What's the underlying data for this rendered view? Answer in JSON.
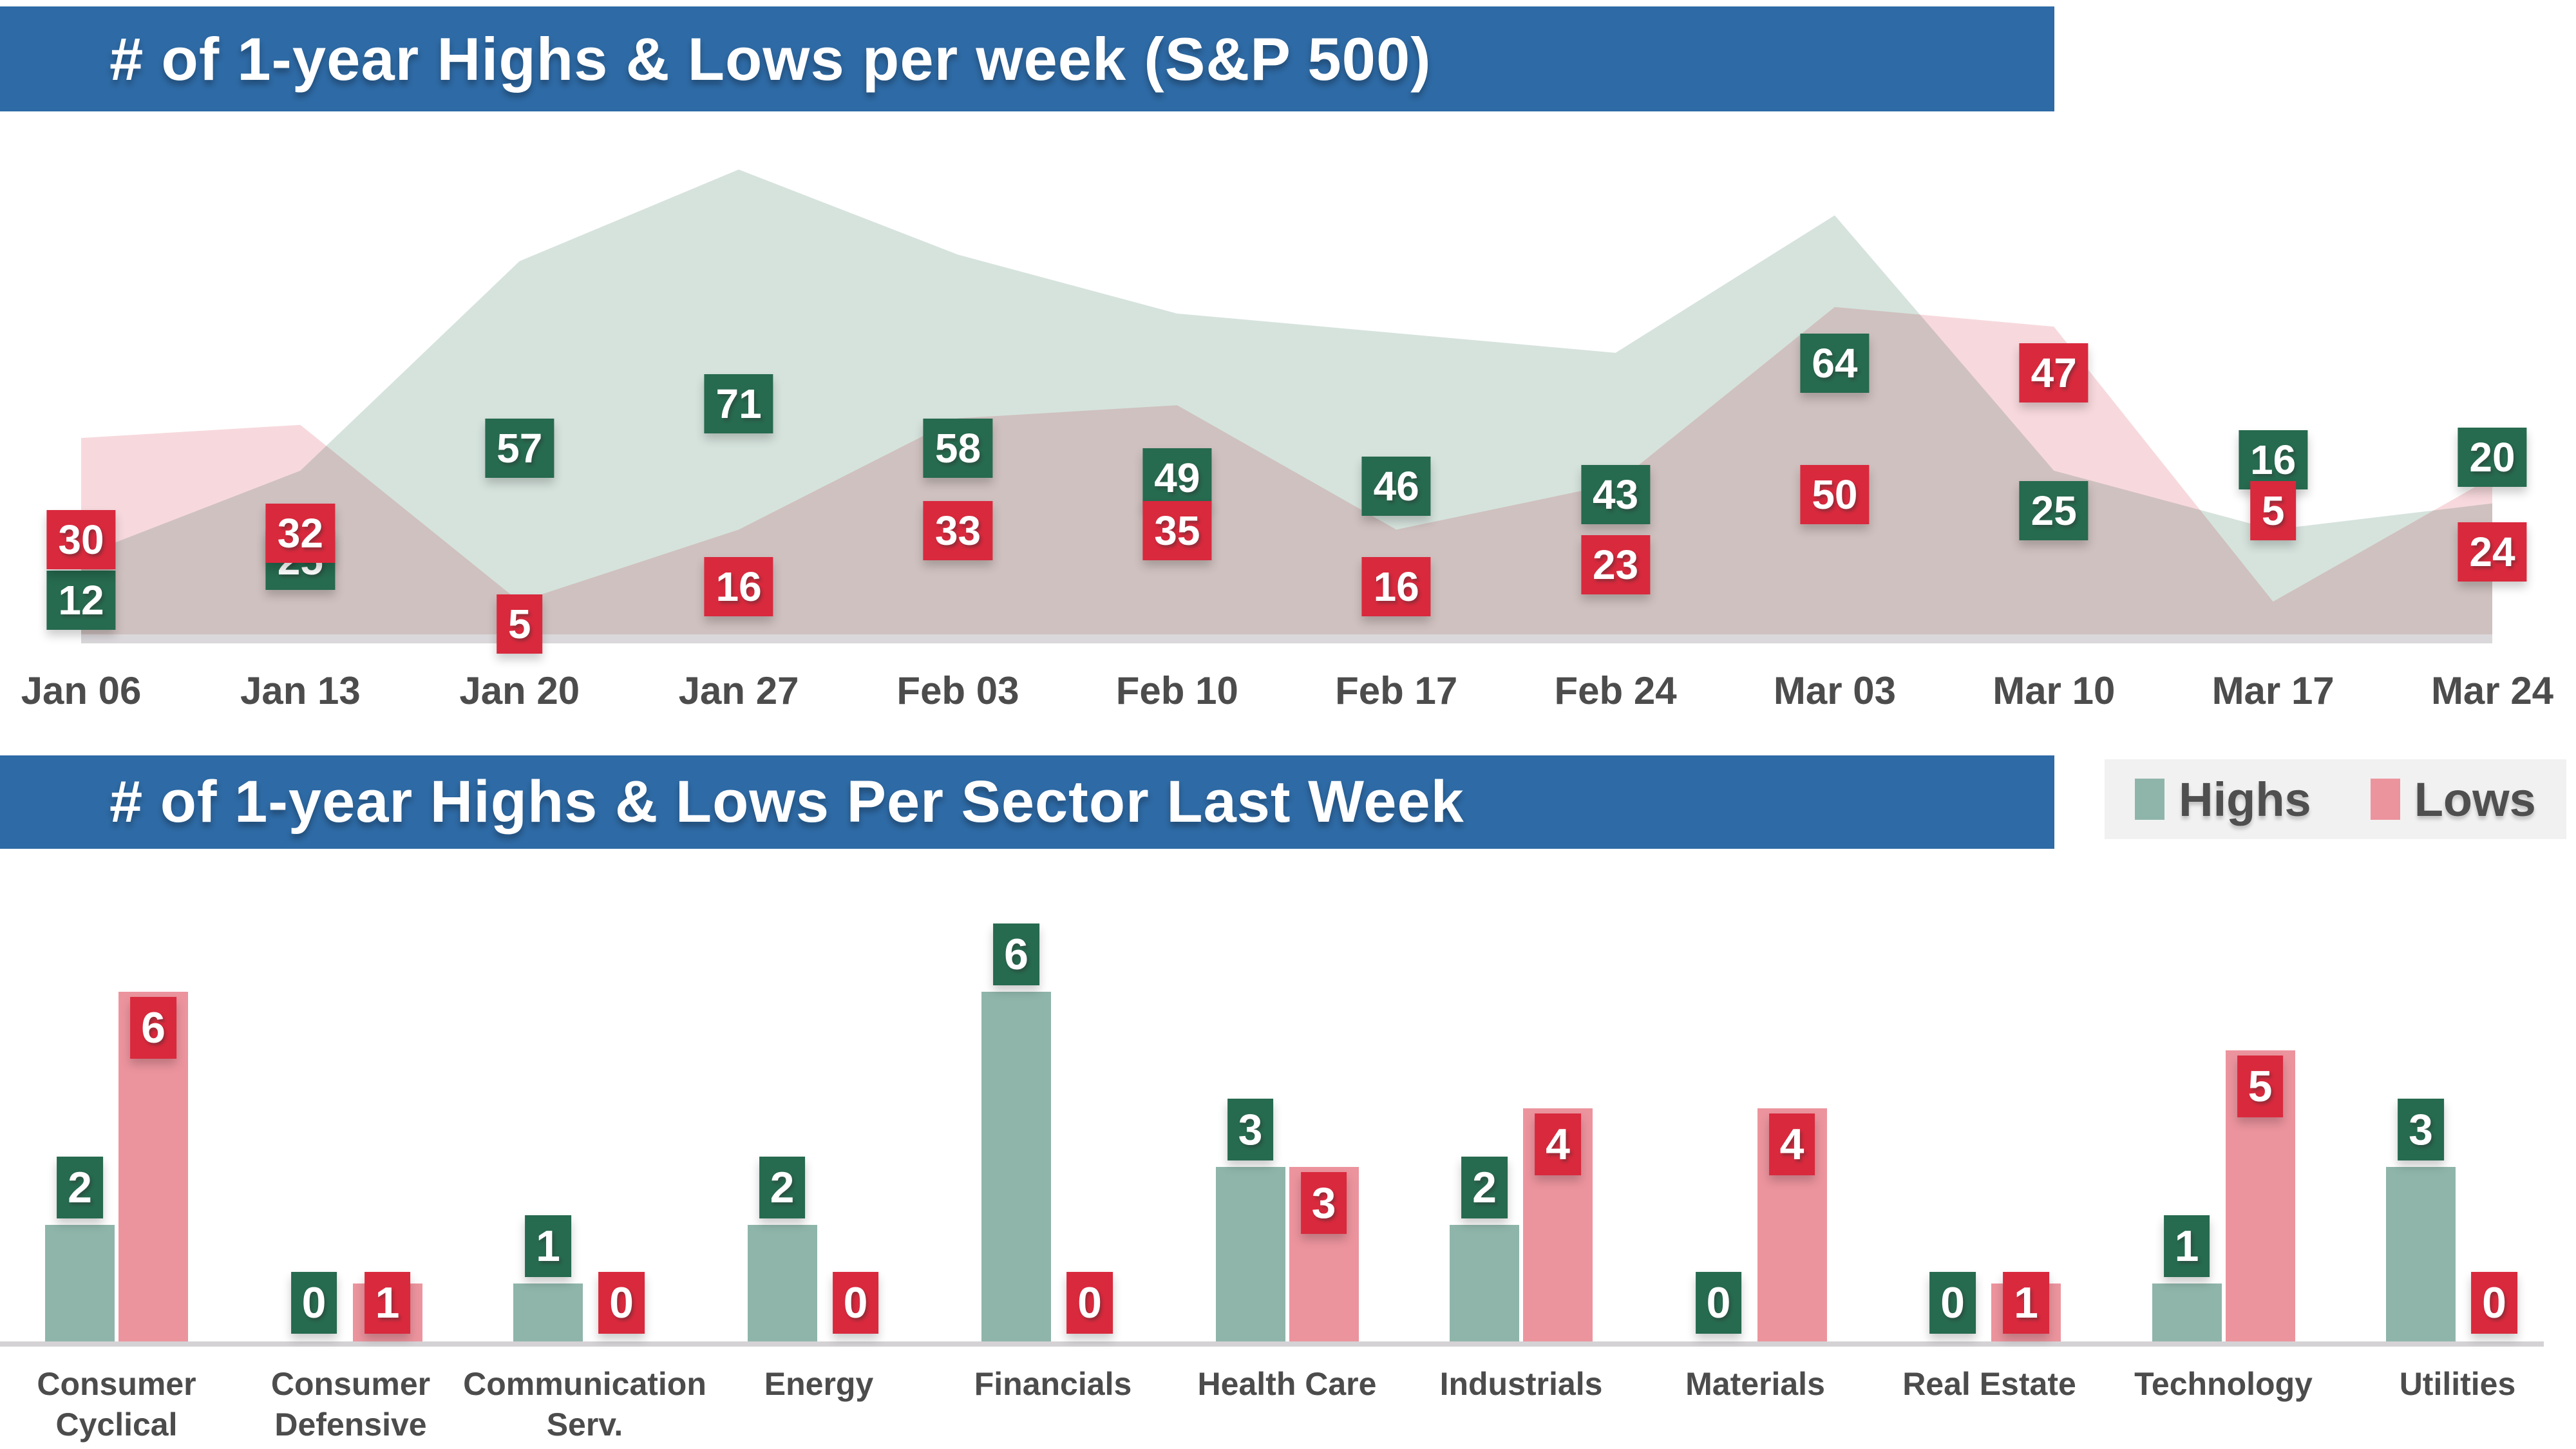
{
  "banner1": {
    "title": "# of 1-year Highs & Lows per week (S&P 500)"
  },
  "banner2": {
    "title": "# of 1-year Highs & Lows Per Sector Last Week"
  },
  "legend": {
    "highs_label": "Highs",
    "lows_label": "Lows"
  },
  "colors": {
    "banner_blue": "#2e6aa5",
    "badge_green": "#266a4f",
    "badge_red": "#d9293d",
    "area_green_fill": "#d6e3dd",
    "area_pink_fill": "#f7d9dd",
    "area_overlap": "#d5bfc0",
    "bar_green": "#8fb5aa",
    "bar_pink": "#ec949e",
    "baseline_gray": "#dbd8db",
    "label_gray": "#4c4c4c"
  },
  "chart_data": [
    {
      "type": "area",
      "title": "# of 1-year Highs & Lows per week (S&P 500)",
      "x": [
        "Jan 06",
        "Jan 13",
        "Jan 20",
        "Jan 27",
        "Feb 03",
        "Feb 10",
        "Feb 17",
        "Feb 24",
        "Mar 03",
        "Mar 10",
        "Mar 17",
        "Mar 24"
      ],
      "series": [
        {
          "name": "Highs",
          "fill": "#d6e3dd",
          "label_bg": "#266a4f",
          "values": [
            12,
            25,
            57,
            71,
            58,
            49,
            46,
            43,
            64,
            25,
            16,
            20
          ],
          "label_y": [
            932,
            870,
            696,
            627,
            696,
            742,
            755,
            768,
            564,
            793,
            714,
            710
          ]
        },
        {
          "name": "Lows",
          "fill": "#f7d9dd",
          "label_bg": "#d9293d",
          "values": [
            30,
            32,
            5,
            16,
            33,
            35,
            16,
            23,
            50,
            47,
            5,
            24
          ],
          "label_y": [
            838,
            828,
            969,
            911,
            824,
            824,
            911,
            877,
            768,
            579,
            793,
            857
          ]
        }
      ],
      "ylim": [
        0,
        79
      ],
      "grid": false,
      "legend_position": "none",
      "annotations": "every point labeled with its value in a colored box"
    },
    {
      "type": "bar",
      "title": "# of 1-year Highs & Lows Per Sector Last Week",
      "categories": [
        [
          "Consumer",
          "Cyclical"
        ],
        [
          "Consumer",
          "Defensive"
        ],
        [
          "Communication",
          "Serv."
        ],
        [
          "Energy"
        ],
        [
          "Financials"
        ],
        [
          "Health Care"
        ],
        [
          "Industrials"
        ],
        [
          "Materials"
        ],
        [
          "Real Estate"
        ],
        [
          "Technology"
        ],
        [
          "Utilities"
        ]
      ],
      "series": [
        {
          "name": "Highs",
          "color": "#8fb5aa",
          "label_bg": "#266a4f",
          "values": [
            2,
            0,
            1,
            2,
            6,
            3,
            2,
            0,
            0,
            1,
            3
          ]
        },
        {
          "name": "Lows",
          "color": "#ec949e",
          "label_bg": "#d9293d",
          "values": [
            6,
            1,
            0,
            0,
            0,
            3,
            4,
            4,
            1,
            5,
            0
          ]
        }
      ],
      "ylim": [
        0,
        6
      ],
      "grid": false,
      "legend_position": "top-right",
      "annotations": "every bar labeled with its value in a colored box"
    }
  ]
}
